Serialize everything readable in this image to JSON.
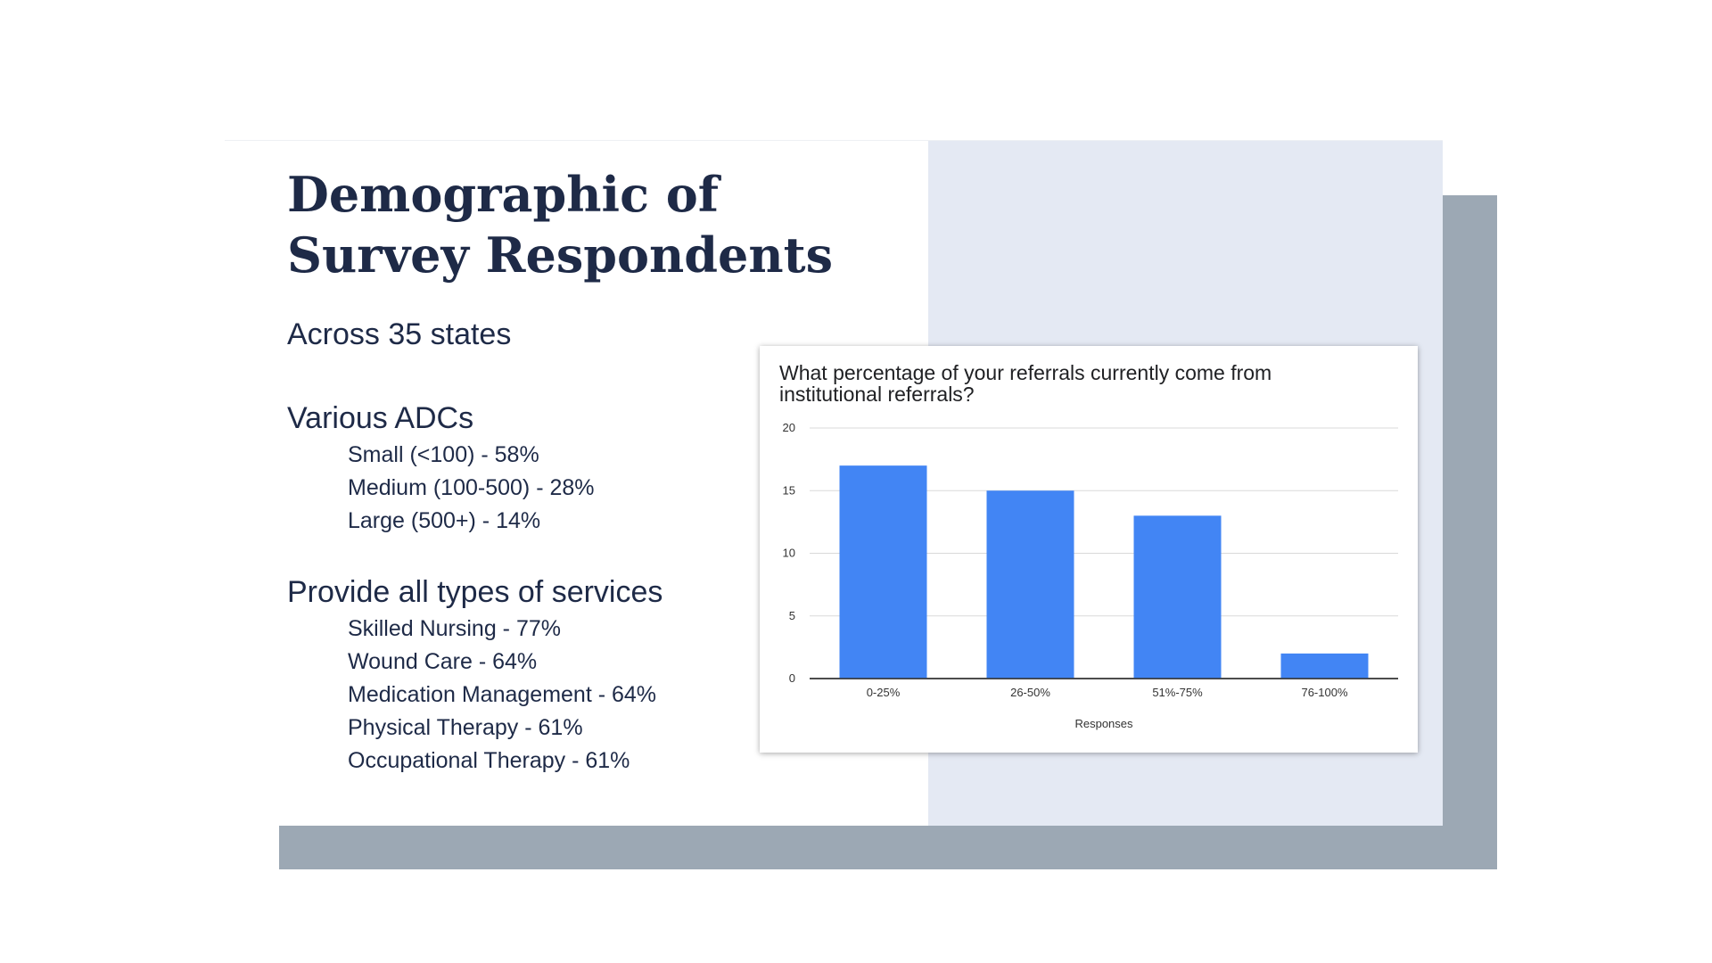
{
  "slide": {
    "title": "Demographic of Survey Respondents",
    "subtitle": "Across 35 states",
    "adcs": {
      "heading": "Various ADCs",
      "items": [
        "Small (<100) - 58%",
        "Medium (100-500) - 28%",
        "Large (500+) - 14%"
      ]
    },
    "services": {
      "heading": "Provide all types of services",
      "items": [
        "Skilled Nursing - 77%",
        "Wound Care - 64%",
        "Medication Management - 64%",
        "Physical Therapy - 61%",
        "Occupational Therapy - 61%"
      ]
    }
  },
  "colors": {
    "bar": "#4285f4",
    "title_text": "#1e2a47",
    "panel": "#e4e9f3",
    "shadow": "#9ca8b4"
  },
  "chart_data": {
    "type": "bar",
    "title": "What percentage of your referrals currently come from institutional referrals?",
    "xlabel": "Responses",
    "ylabel": "",
    "categories": [
      "0-25%",
      "26-50%",
      "51%-75%",
      "76-100%"
    ],
    "values": [
      17,
      15,
      13,
      2
    ],
    "ylim": [
      0,
      20
    ],
    "yticks": [
      0,
      5,
      10,
      15,
      20
    ],
    "grid": true,
    "legend": "none"
  }
}
